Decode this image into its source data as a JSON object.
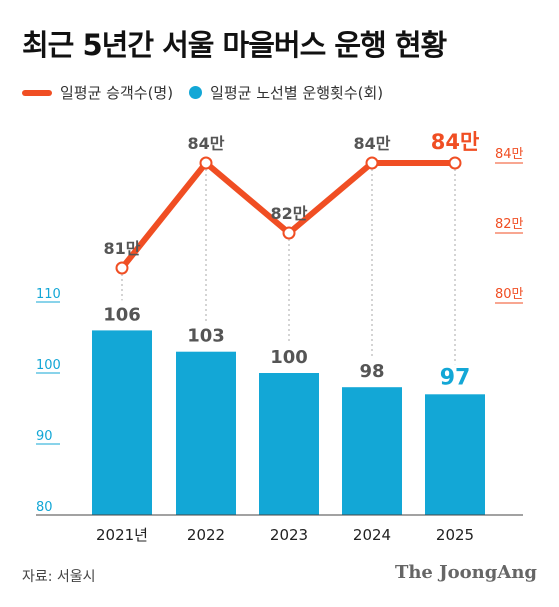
{
  "title": "최근 5년간 서울 마을버스 운행 현황",
  "legend": {
    "passengers": "일평균 승객수(명)",
    "trips": "일평균 노선별 운행횟수(회)"
  },
  "source": "자료: 서울시",
  "brand": "The JoongAng",
  "colors": {
    "passengers": "#f04e23",
    "trips": "#13a7d6",
    "text": "#555555"
  },
  "chart_data": {
    "type": "bar",
    "categories": [
      "2021년",
      "2022",
      "2023",
      "2024",
      "2025"
    ],
    "series": [
      {
        "name": "일평균 노선별 운행횟수(회)",
        "type": "bar",
        "values": [
          106,
          103,
          100,
          98,
          97
        ],
        "labels": [
          "106",
          "103",
          "100",
          "98",
          "97"
        ],
        "axis": "left"
      },
      {
        "name": "일평균 승객수(명)",
        "type": "line",
        "values": [
          81,
          84,
          82,
          84,
          84
        ],
        "labels": [
          "81만",
          "84만",
          "82만",
          "84만",
          "84만"
        ],
        "axis": "right"
      }
    ],
    "y_left": {
      "ticks": [
        "110",
        "100",
        "90",
        "80"
      ],
      "ylim": [
        80,
        110
      ]
    },
    "y_right": {
      "ticks": [
        "84만",
        "82만",
        "80만"
      ]
    }
  }
}
